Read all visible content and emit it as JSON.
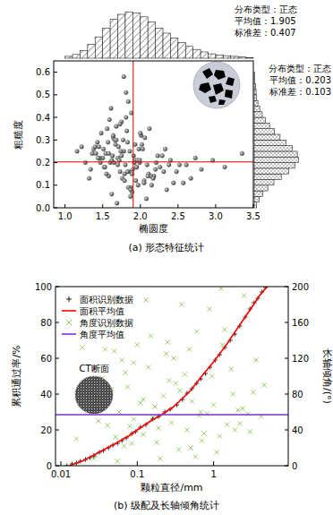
{
  "chart_data": [
    {
      "type": "scatter",
      "xlabel": "椭圆度",
      "ylabel": "粗糙度",
      "caption": "(a) 形态特征统计",
      "color": "#555555",
      "marker": "circle",
      "xlim": [
        0.85,
        3.5
      ],
      "ylim": [
        0,
        0.65
      ],
      "xticks": [
        {
          "value": 1,
          "label": "1.0"
        },
        1.5,
        {
          "value": 2,
          "label": "2.0"
        },
        2.5,
        {
          "value": 3,
          "label": "3.0"
        },
        3.5
      ],
      "yticks": [
        {
          "value": 0,
          "label": "0.0"
        },
        0.1,
        0.2,
        0.3,
        0.4,
        0.5,
        0.6
      ],
      "x": [
        1.52,
        1.78,
        2.05,
        1.64,
        1.93,
        2.31,
        1.45,
        1.87,
        1.7,
        2.12,
        1.58,
        1.99,
        1.83,
        2.44,
        1.36,
        1.75,
        2.2,
        1.62,
        1.91,
        1.8,
        2.67,
        1.48,
        1.72,
        2.03,
        1.55,
        1.88,
        2.35,
        1.67,
        1.95,
        1.41,
        1.77,
        2.15,
        1.6,
        1.84,
        2.52,
        1.32,
        1.98,
        1.73,
        2.08,
        1.5,
        1.86,
        2.26,
        1.68,
        1.94,
        1.57,
        2.4,
        1.79,
        1.63,
        2.01,
        1.27,
        2.81,
        1.71,
        1.89,
        1.54,
        2.18,
        1.81,
        1.46,
        2.09,
        1.66,
        2.57,
        1.92,
        1.38,
        1.76,
        2.29,
        1.59,
        1.85,
        2.02,
        1.69,
        2.96,
        1.53,
        1.82,
        2.11,
        1.44,
        1.97,
        1.74,
        2.38,
        1.61,
        1.9,
        1.22,
        2.23,
        1.79,
        2.06,
        1.65,
        3.12,
        1.87,
        1.51,
        2.14,
        1.73,
        1.96,
        1.43,
        2.48,
        1.84,
        1.58,
        2.0,
        1.7,
        2.73,
        1.34,
        1.93,
        1.81,
        2.17,
        1.62,
        1.89,
        2.33,
        1.47,
        1.78,
        2.05,
        3.35,
        1.68,
        1.95,
        1.56,
        2.61,
        1.75,
        1.87,
        1.4,
        2.21,
        1.83,
        1.64,
        2.1,
        1.16,
        1.99
      ],
      "values": [
        0.18,
        0.25,
        0.12,
        0.31,
        0.21,
        0.16,
        0.27,
        0.09,
        0.22,
        0.35,
        0.14,
        0.2,
        0.29,
        0.11,
        0.24,
        0.38,
        0.17,
        0.06,
        0.23,
        0.19,
        0.13,
        0.33,
        0.21,
        0.26,
        0.15,
        0.42,
        0.08,
        0.28,
        0.18,
        0.24,
        0.3,
        0.1,
        0.2,
        0.47,
        0.19,
        0.13,
        0.26,
        0.16,
        0.04,
        0.22,
        0.25,
        0.18,
        0.36,
        0.12,
        0.29,
        0.21,
        0.15,
        0.23,
        0.32,
        0.2,
        0.17,
        0.27,
        0.07,
        0.24,
        0.14,
        0.51,
        0.22,
        0.19,
        0.3,
        0.11,
        0.2,
        0.26,
        0.13,
        0.23,
        0.39,
        0.16,
        0.28,
        0.02,
        0.21,
        0.18,
        0.34,
        0.15,
        0.22,
        0.1,
        0.25,
        0.19,
        0.44,
        0.17,
        0.27,
        0.23,
        0.12,
        0.31,
        0.2,
        0.18,
        0.05,
        0.26,
        0.14,
        0.37,
        0.21,
        0.29,
        0.16,
        0.09,
        0.24,
        0.33,
        0.19,
        0.22,
        0.17,
        0.28,
        0.4,
        0.13,
        0.21,
        0.15,
        0.26,
        0.2,
        0.58,
        0.11,
        0.24,
        0.3,
        0.18,
        0.35,
        0.19,
        0.23,
        0.08,
        0.27,
        0.2,
        0.16,
        0.32,
        0.14,
        0.25,
        0.21
      ],
      "x_mean": 1.905,
      "y_mean": 0.203,
      "x_hist": {
        "bins": [
          1,
          1.1,
          1.2,
          1.3,
          1.4,
          1.5,
          1.6,
          1.7,
          1.8,
          1.9,
          2,
          2.1,
          2.2,
          2.3,
          2.4,
          2.5,
          2.6,
          2.7,
          2.8,
          2.9,
          3,
          3.1,
          3.2,
          3.3,
          3.4,
          3.5
        ],
        "counts": [
          3,
          6,
          12,
          22,
          34,
          48,
          62,
          70,
          74,
          72,
          66,
          58,
          48,
          40,
          32,
          25,
          19,
          14,
          10,
          7,
          5,
          4,
          3,
          2,
          1
        ],
        "ylim": [
          0,
          80
        ]
      },
      "y_hist": {
        "bins": [
          0,
          0.025,
          0.05,
          0.075,
          0.1,
          0.125,
          0.15,
          0.175,
          0.2,
          0.225,
          0.25,
          0.275,
          0.3,
          0.325,
          0.35,
          0.375,
          0.4,
          0.425,
          0.45,
          0.475,
          0.5,
          0.525,
          0.55,
          0.575,
          0.6
        ],
        "counts": [
          4,
          8,
          14,
          22,
          32,
          44,
          56,
          66,
          72,
          70,
          62,
          52,
          42,
          33,
          25,
          18,
          13,
          9,
          6,
          4,
          3,
          2,
          1,
          1
        ],
        "ylim": [
          0,
          80
        ]
      },
      "x_stats": [
        "分布类型：正态",
        "平均值：1.905",
        "标准差：0.407"
      ],
      "y_stats": [
        "分布类型：正态",
        "平均值：0.203",
        "标准差：0.103"
      ]
    },
    {
      "type": "line",
      "caption": "(b) 级配及长轴倾角统计",
      "xlabel": "颗粒直径/mm",
      "ylabel": "累积通过率/%",
      "y2label": "长轴倾角/(°)",
      "inset_label": "CT断面",
      "log": "x",
      "legend": "upper left",
      "xlim": [
        0.0085,
        9.5
      ],
      "xticks": [
        0.01,
        0.1,
        1
      ],
      "ylim": [
        0,
        100
      ],
      "yticks": [
        0,
        20,
        40,
        60,
        80,
        100
      ],
      "y2lim": [
        0,
        200
      ],
      "y2ticks": [
        0,
        40,
        80,
        120,
        160,
        200
      ],
      "series": [
        {
          "name": "面积识别数据",
          "type": "scatter",
          "marker": "plus",
          "color": "#000000",
          "x": [
            0.012,
            0.014,
            0.016,
            0.018,
            0.021,
            0.024,
            0.027,
            0.032,
            0.036,
            0.042,
            0.048,
            0.055,
            0.063,
            0.072,
            0.085,
            0.095,
            0.11,
            0.13,
            0.16,
            0.19,
            0.23,
            0.27,
            0.33,
            0.39,
            0.45,
            0.52,
            0.6,
            0.68,
            0.78,
            0.9,
            1.05,
            1.2,
            1.4,
            1.65,
            1.9,
            2.2,
            2.6,
            3.0,
            3.4,
            3.8,
            4.3,
            4.8
          ],
          "values": [
            0,
            1,
            1.5,
            2.5,
            3.5,
            4.5,
            5.5,
            7.5,
            8.5,
            10,
            11.5,
            12.5,
            14,
            15.5,
            18,
            19,
            21.5,
            23,
            26,
            27.5,
            30,
            31.5,
            34,
            37,
            40.5,
            43,
            46,
            48.5,
            51.5,
            55,
            59,
            62,
            66,
            70,
            73.5,
            78,
            83,
            87.5,
            91,
            93.5,
            97,
            99.5
          ]
        },
        {
          "name": "面积平均值",
          "type": "line",
          "line_style": "solid",
          "color": "#ff0000",
          "x": [
            0.013,
            0.02,
            0.03,
            0.05,
            0.08,
            0.1,
            0.15,
            0.2,
            0.3,
            0.5,
            0.7,
            1,
            1.5,
            2,
            3,
            4,
            5
          ],
          "values": [
            0,
            3,
            7,
            12,
            17,
            20,
            25,
            28,
            33,
            42,
            50,
            58,
            68,
            76,
            87,
            95,
            100
          ]
        },
        {
          "name": "角度识别数据",
          "type": "scatter",
          "marker": "x",
          "color": "#7fbf3f",
          "axis": "y2",
          "x": [
            0.016,
            0.022,
            0.028,
            0.035,
            0.041,
            0.05,
            0.058,
            0.067,
            0.075,
            0.09,
            0.1,
            0.12,
            0.14,
            0.17,
            0.2,
            0.24,
            0.28,
            0.32,
            0.38,
            0.45,
            0.52,
            0.6,
            0.7,
            0.82,
            0.95,
            1.1,
            1.3,
            1.5,
            1.8,
            2.1,
            2.5,
            3.0,
            3.6,
            4.2,
            0.019,
            0.031,
            0.046,
            0.063,
            0.085,
            0.11,
            0.15,
            0.19,
            0.26,
            0.35,
            0.48,
            0.65,
            0.88,
            1.2,
            1.7,
            2.4,
            3.3,
            0.025,
            0.038,
            0.055,
            0.08,
            0.13,
            0.22,
            0.42,
            0.75,
            1.4,
            2.8,
            4.6,
            0.044,
            0.07,
            0.16,
            0.3,
            0.58,
            1.0,
            1.9,
            0.09,
            0.18,
            0.36,
            0.68,
            1.25,
            2.2,
            0.027,
            0.052,
            0.12,
            0.25,
            0.5
          ],
          "values": [
            30,
            75,
            12,
            98,
            45,
            128,
            60,
            22,
            88,
            52,
            135,
            35,
            110,
            66,
            8,
            125,
            48,
            92,
            180,
            40,
            72,
            150,
            28,
            58,
            100,
            15,
            135,
            46,
            80,
            62,
            190,
            38,
            118,
            55,
            132,
            50,
            85,
            118,
            25,
            70,
            145,
            42,
            95,
            18,
            130,
            56,
            175,
            33,
            108,
            64,
            82,
            62,
            130,
            5,
            44,
            185,
            78,
            102,
            36,
            152,
            58,
            90,
            76,
            104,
            54,
            120,
            10,
            68,
            40,
            115,
            26,
            84,
            60,
            198,
            47,
            8,
            32,
            74,
            138,
            20
          ]
        },
        {
          "name": "角度平均值",
          "type": "hline",
          "color": "#7b2fd6",
          "axis": "y2",
          "values": [
            57
          ]
        }
      ]
    }
  ]
}
